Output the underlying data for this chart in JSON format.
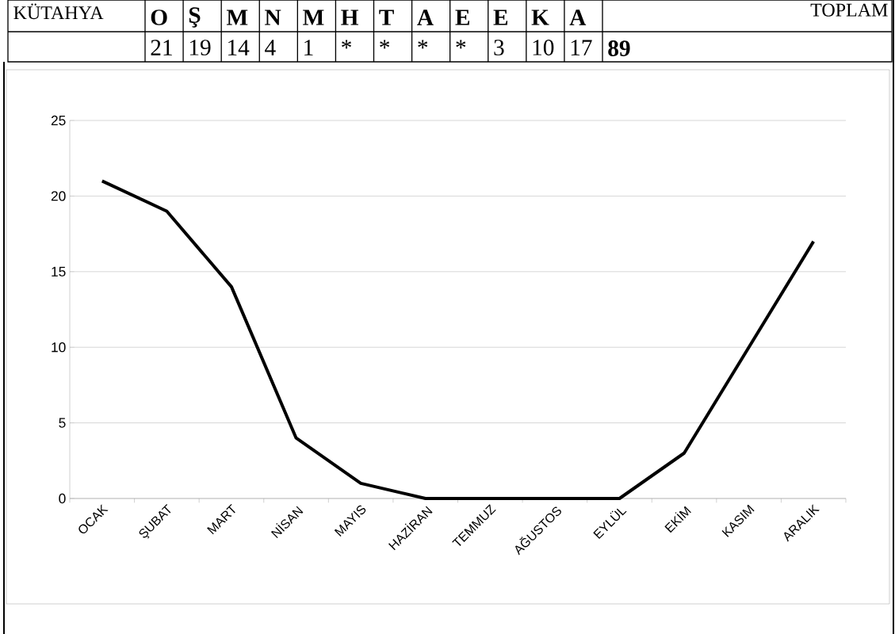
{
  "chart_data": {
    "type": "line",
    "title": "KÜTAHYA",
    "categories": [
      "OCAK",
      "ŞUBAT",
      "MART",
      "NİSAN",
      "MAYIS",
      "HAZİRAN",
      "TEMMUZ",
      "AĞUSTOS",
      "EYLÜL",
      "EKİM",
      "KASIM",
      "ARALIK"
    ],
    "series": [
      {
        "color": "#000000",
        "values": [
          21,
          19,
          14,
          4,
          1,
          0,
          0,
          0,
          0,
          3,
          10,
          17
        ]
      }
    ],
    "annotations": [
      "O",
      "Ş",
      "M",
      "N",
      "M",
      "H",
      "T",
      "A",
      "E",
      "E",
      "K",
      "A",
      "TOPLAM",
      "21",
      "19",
      "14",
      "4",
      "1",
      "*",
      "*",
      "*",
      "*",
      "3",
      "10",
      "17"
    ],
    "totals": [
      "89"
    ],
    "ylim": [
      0,
      25
    ],
    "yticks": [
      0,
      5,
      10,
      15,
      20,
      25
    ],
    "grid": "y",
    "marker": "none",
    "line_style": "solid"
  }
}
